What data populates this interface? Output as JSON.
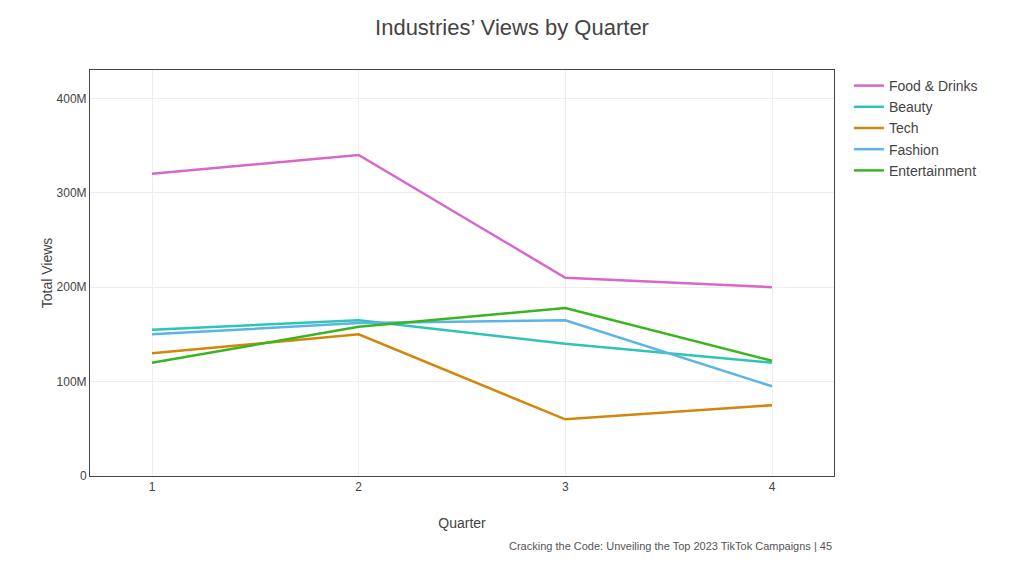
{
  "chart_data": {
    "type": "line",
    "title": "Industries’ Views by Quarter",
    "xlabel": "Quarter",
    "ylabel": "Total Views",
    "x": [
      1,
      2,
      3,
      4
    ],
    "series": [
      {
        "name": "Food & Drinks",
        "color": "#d966c8",
        "values": [
          320,
          340,
          210,
          200
        ]
      },
      {
        "name": "Beauty",
        "color": "#2ec4b6",
        "values": [
          155,
          165,
          140,
          120
        ]
      },
      {
        "name": "Tech",
        "color": "#d4860a",
        "values": [
          130,
          150,
          60,
          75
        ]
      },
      {
        "name": "Fashion",
        "color": "#5ab4e8",
        "values": [
          150,
          162,
          165,
          95
        ]
      },
      {
        "name": "Entertainment",
        "color": "#3ab520",
        "values": [
          120,
          158,
          178,
          122
        ]
      }
    ],
    "xlim": [
      0.7,
      4.3
    ],
    "xticks": [
      1,
      2,
      3,
      4
    ],
    "ylim": [
      0,
      430
    ],
    "yticks": [
      0,
      {
        "value": 100,
        "label": "100M"
      },
      {
        "value": 200,
        "label": "200M"
      },
      {
        "value": 300,
        "label": "300M"
      },
      {
        "value": 400,
        "label": "400M"
      }
    ],
    "grid": true,
    "legend": "right",
    "annotations": [
      "Cracking the Code: Unveiling the Top 2023 TikTok Campaigns | 45"
    ]
  }
}
